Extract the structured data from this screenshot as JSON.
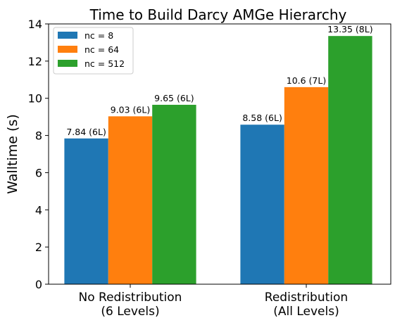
{
  "chart_data": {
    "type": "bar",
    "title": "Time to Build Darcy AMGe Hierarchy",
    "xlabel": "",
    "ylabel": "Walltime (s)",
    "ylim": [
      0,
      14
    ],
    "yticks": [
      "0",
      "2",
      "4",
      "6",
      "8",
      "10",
      "12",
      "14"
    ],
    "categories": [
      [
        "No Redistribution",
        "(6 Levels)"
      ],
      [
        "Redistribution",
        "(All Levels)"
      ]
    ],
    "series": [
      {
        "name": "nc = 8",
        "color": "#1f77b4",
        "values": [
          7.84,
          8.58
        ],
        "labels": [
          "7.84 (6L)",
          "8.58 (6L)"
        ]
      },
      {
        "name": "nc = 64",
        "color": "#ff7f0e",
        "values": [
          9.03,
          10.6
        ],
        "labels": [
          "9.03 (6L)",
          "10.6 (7L)"
        ]
      },
      {
        "name": "nc = 512",
        "color": "#2ca02c",
        "values": [
          9.65,
          13.35
        ],
        "labels": [
          "9.65 (6L)",
          "13.35 (8L)"
        ]
      }
    ],
    "legend": {
      "placement": "top-left"
    },
    "grid": false
  }
}
